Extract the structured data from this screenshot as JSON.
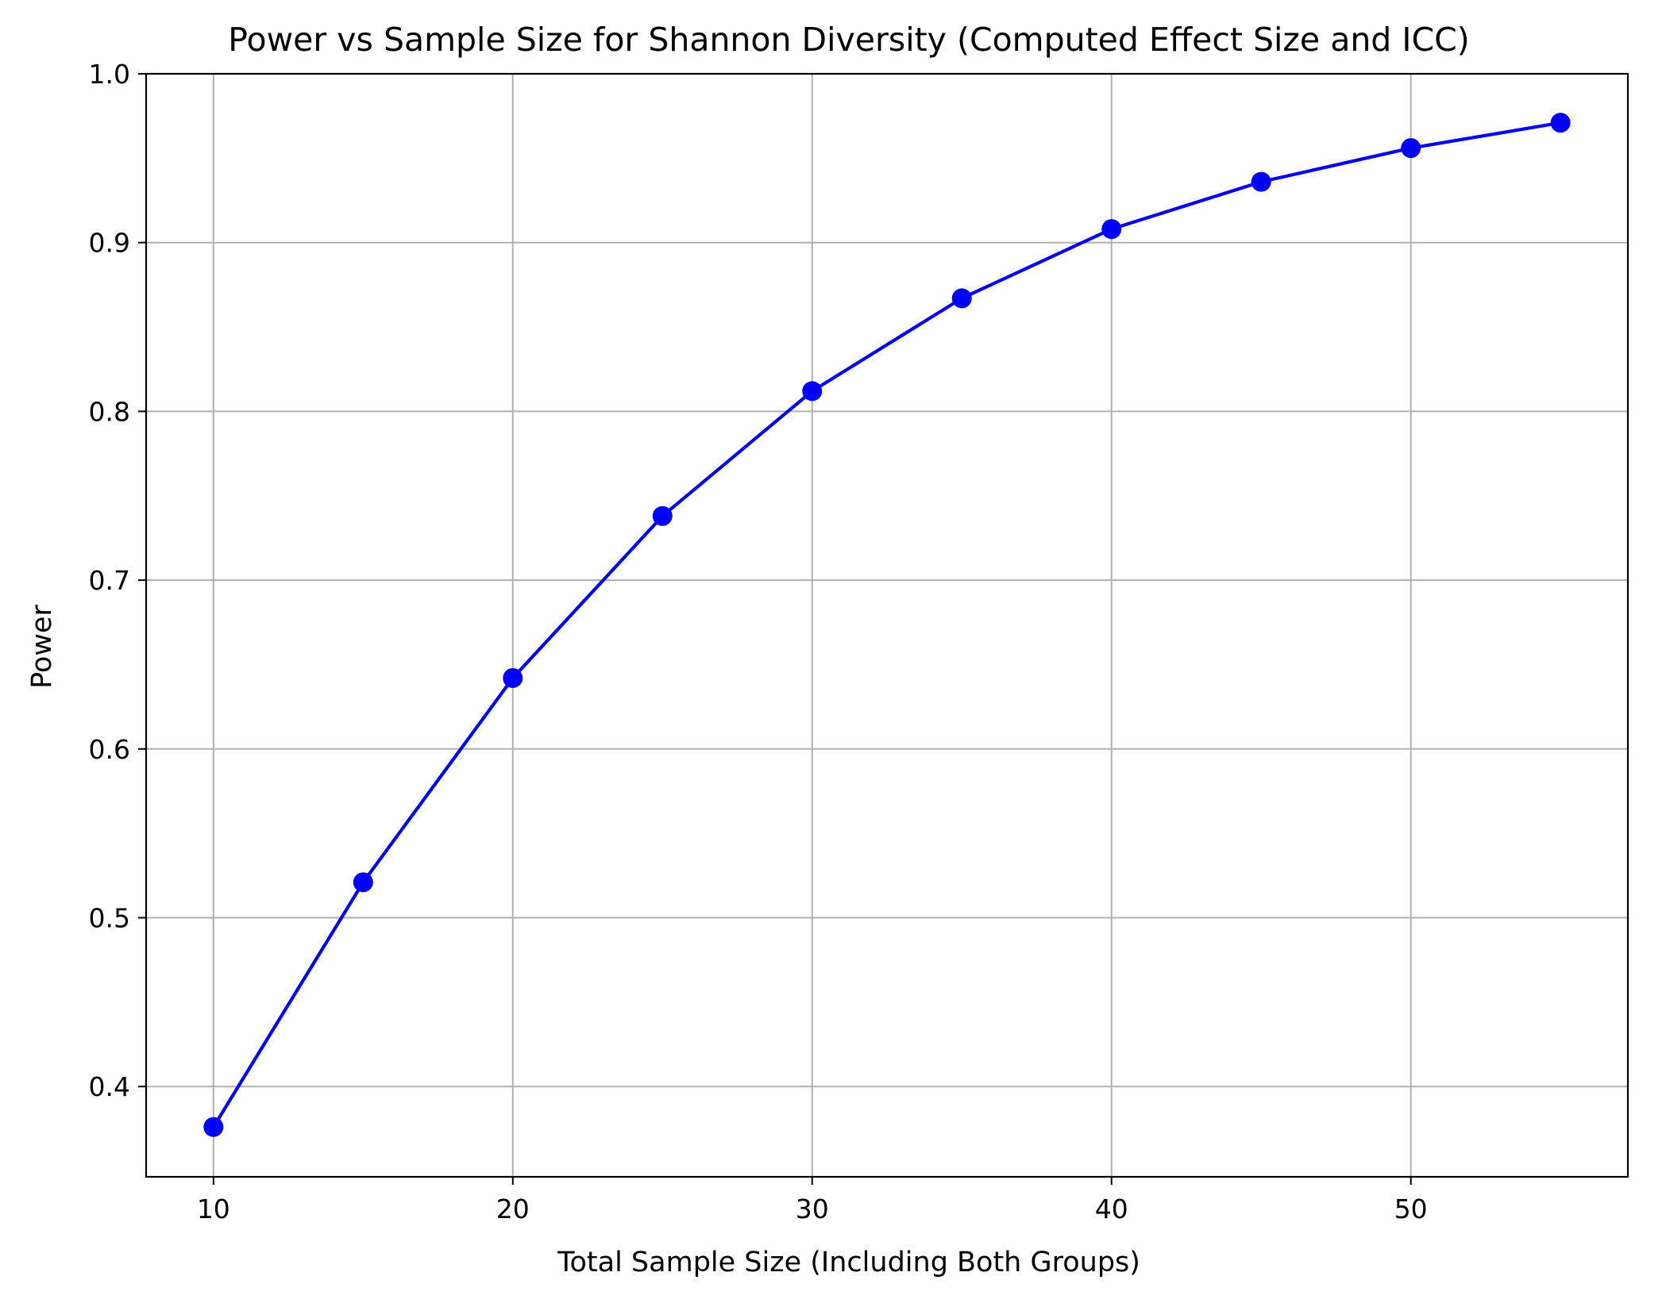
{
  "chart_data": {
    "type": "line",
    "title": "Power vs Sample Size for Shannon Diversity (Computed Effect Size and ICC)",
    "xlabel": "Total Sample Size (Including Both Groups)",
    "ylabel": "Power",
    "x": [
      10,
      15,
      20,
      25,
      30,
      35,
      40,
      45,
      50,
      55
    ],
    "series": [
      {
        "values": [
          0.376,
          0.521,
          0.642,
          0.738,
          0.812,
          0.867,
          0.908,
          0.936,
          0.956,
          0.971
        ],
        "color": "#0000ff",
        "marker": "circle"
      }
    ],
    "xlim": [
      7.75,
      57.25
    ],
    "ylim": [
      0.3465,
      1.0
    ],
    "xticks": [
      10,
      20,
      30,
      40,
      50
    ],
    "xtick_labels": [
      "10",
      "20",
      "30",
      "40",
      "50"
    ],
    "yticks": [
      0.4,
      0.5,
      0.6,
      0.7,
      0.8,
      0.9,
      1.0
    ],
    "ytick_labels": [
      "0.4",
      "0.5",
      "0.6",
      "0.7",
      "0.8",
      "0.9",
      "1.0"
    ],
    "grid": true,
    "grid_color": "#b0b0b0",
    "legend": "none"
  }
}
